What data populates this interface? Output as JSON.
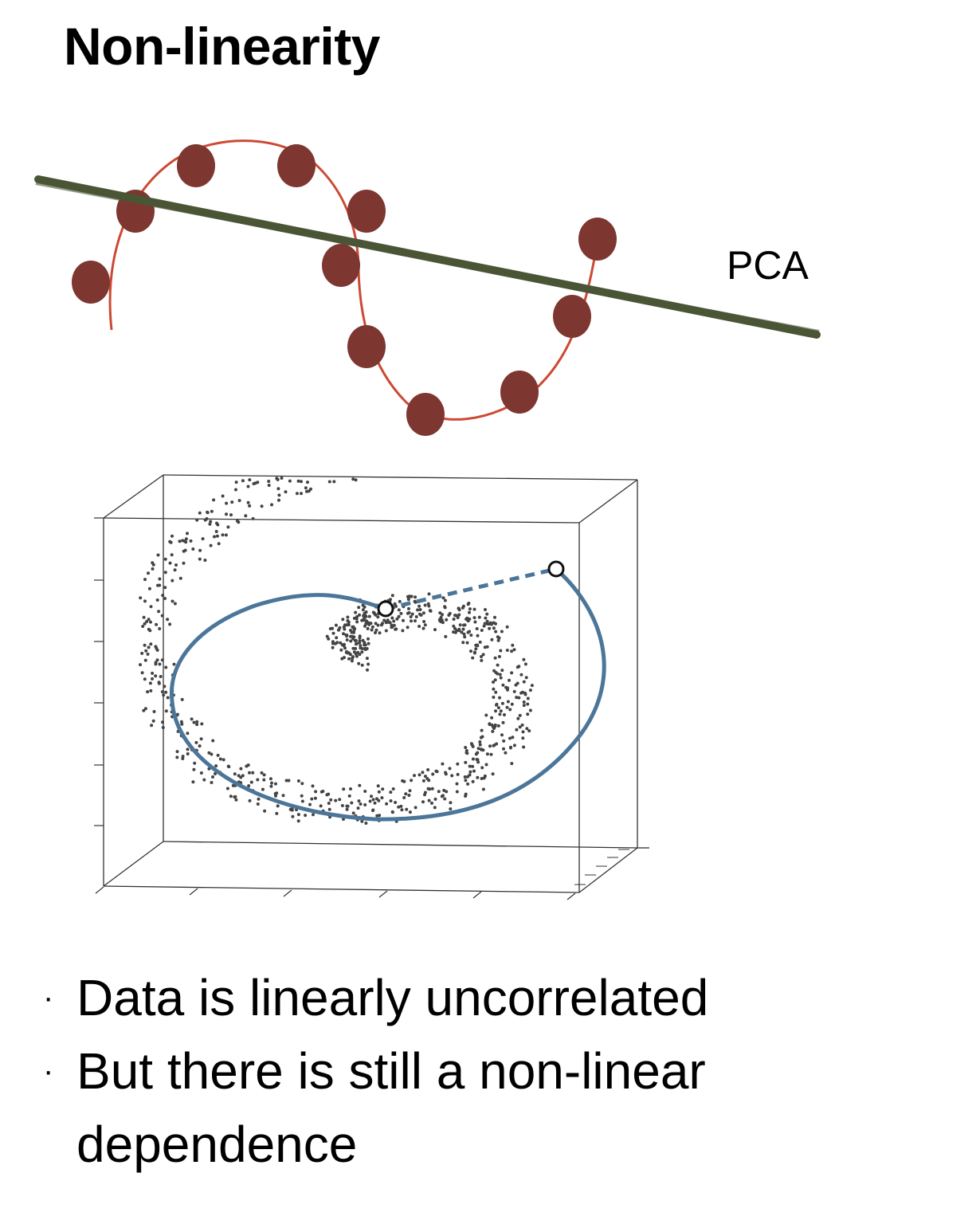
{
  "title": "Non-linearity",
  "pca_label": "PCA",
  "bullets": [
    "Data is linearly uncorrelated",
    "But there is still a non-linear dependence"
  ],
  "bullet_marker": "·",
  "colors": {
    "curve_red": "#cc4a34",
    "dot_brown": "#7e3630",
    "pca_line": "#4a5536",
    "scatter_gray": "#444444",
    "path_blue": "#4c7699",
    "box_gray": "#333333"
  }
}
